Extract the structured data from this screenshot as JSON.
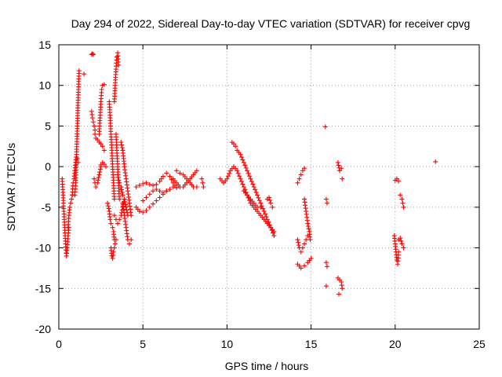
{
  "chart_data": {
    "type": "scatter",
    "title": "Day 294 of 2022, Sidereal Day-to-day VTEC variation (SDTVAR) for receiver cpvg",
    "xlabel": "GPS time / hours",
    "ylabel": "SDTVAR / TECUs",
    "xlim": [
      0,
      25
    ],
    "ylim": [
      -20,
      15
    ],
    "xticks": [
      0,
      5,
      10,
      15,
      20,
      25
    ],
    "yticks": [
      -20,
      -15,
      -10,
      -5,
      0,
      5,
      10,
      15
    ],
    "xtick_labels": [
      "0",
      "5",
      "10",
      "15",
      "20",
      "25"
    ],
    "ytick_labels": [
      "-20",
      "-15",
      "-10",
      "-5",
      "0",
      "5",
      "10",
      "15"
    ],
    "grid": true,
    "marker": "plus",
    "color": "#ff0000",
    "series": [
      {
        "name": "s01",
        "x": [
          0.2,
          0.25,
          0.3,
          0.35,
          0.4,
          0.45,
          0.5,
          0.55,
          0.6
        ],
        "y": [
          -1.5,
          -3.5,
          -5.5,
          -7.5,
          -9.5,
          -11.0,
          -10.0,
          -8.5,
          -7.5
        ]
      },
      {
        "name": "s02",
        "x": [
          0.55,
          0.6,
          0.65,
          0.7,
          0.75,
          0.8
        ],
        "y": [
          -7.5,
          -6.0,
          -5.0,
          -4.5,
          -4.0,
          -3.5
        ]
      },
      {
        "name": "s03",
        "x": [
          0.8,
          0.85,
          0.9,
          0.95,
          1.0,
          1.05,
          1.1,
          1.15
        ],
        "y": [
          -3.5,
          -2.0,
          -1.5,
          -0.5,
          0.5,
          1.5,
          1.0,
          0.5
        ]
      },
      {
        "name": "s04",
        "x": [
          0.95,
          1.0,
          1.05,
          1.1,
          1.15,
          1.2
        ],
        "y": [
          -3.5,
          -2.0,
          1.5,
          5.0,
          8.5,
          11.8
        ]
      },
      {
        "name": "s05",
        "x": [
          1.5
        ],
        "y": [
          11.4
        ]
      },
      {
        "name": "s06",
        "x": [
          1.95,
          2.0,
          2.05
        ],
        "y": [
          13.8,
          13.9,
          13.8
        ]
      },
      {
        "name": "s07",
        "x": [
          1.95,
          2.0,
          2.05,
          2.1,
          2.15
        ],
        "y": [
          6.8,
          6.0,
          5.5,
          5.0,
          4.5
        ]
      },
      {
        "name": "s08",
        "x": [
          2.15,
          2.2,
          2.3,
          2.4,
          2.5,
          2.6,
          2.7
        ],
        "y": [
          4.0,
          3.5,
          3.3,
          3.0,
          2.8,
          2.5,
          2.0
        ]
      },
      {
        "name": "s09",
        "x": [
          2.1,
          2.15,
          2.2,
          2.3,
          2.4,
          2.5
        ],
        "y": [
          -1.5,
          -2.0,
          -2.5,
          -2.0,
          -1.0,
          0.0
        ]
      },
      {
        "name": "s10",
        "x": [
          2.4,
          2.45,
          2.5,
          2.55,
          2.6,
          2.7
        ],
        "y": [
          4.0,
          6.0,
          8.0,
          9.5,
          10.0,
          10.1
        ]
      },
      {
        "name": "s11",
        "x": [
          2.5,
          2.6,
          2.7,
          2.8
        ],
        "y": [
          0.2,
          0.5,
          0.3,
          0.0
        ]
      },
      {
        "name": "s12",
        "x": [
          2.9,
          3.0,
          3.05,
          3.1,
          3.2,
          3.25,
          3.3
        ],
        "y": [
          -4.5,
          -5.5,
          -6.5,
          -7.0,
          -7.5,
          -8.0,
          -9.0
        ]
      },
      {
        "name": "s13",
        "x": [
          3.1,
          3.15,
          3.2,
          3.25,
          3.3,
          3.35,
          3.4
        ],
        "y": [
          -10.0,
          -11.0,
          -11.3,
          -10.5,
          -10.0,
          -9.5,
          -9.0
        ]
      },
      {
        "name": "s14",
        "x": [
          3.0,
          3.05,
          3.1,
          3.15,
          3.2,
          3.25,
          3.3
        ],
        "y": [
          8.0,
          6.0,
          4.0,
          2.0,
          0.0,
          -2.0,
          -4.0
        ]
      },
      {
        "name": "s15",
        "x": [
          3.3,
          3.35,
          3.4,
          3.45,
          3.5,
          3.55
        ],
        "y": [
          8.0,
          10.0,
          12.0,
          13.5,
          14.0,
          12.5
        ]
      },
      {
        "name": "s16",
        "x": [
          3.4,
          3.45,
          3.5,
          3.55,
          3.6
        ],
        "y": [
          4.0,
          2.0,
          0.0,
          -2.0,
          -4.0
        ]
      },
      {
        "name": "s17",
        "x": [
          3.3,
          3.4,
          3.5,
          3.6,
          3.7,
          3.8,
          3.9
        ],
        "y": [
          -6.0,
          -6.5,
          -7.0,
          -6.5,
          -6.0,
          -5.0,
          -4.0
        ]
      },
      {
        "name": "s18",
        "x": [
          3.8,
          3.9,
          4.0,
          4.1,
          4.2,
          4.3
        ],
        "y": [
          -4.5,
          -6.0,
          -7.5,
          -9.0,
          -9.5,
          -9.0
        ]
      },
      {
        "name": "s19",
        "x": [
          3.7,
          3.8,
          3.9,
          4.0,
          4.1,
          4.2,
          4.3
        ],
        "y": [
          3.0,
          2.0,
          0.0,
          -1.5,
          -3.0,
          -4.5,
          -6.0
        ]
      },
      {
        "name": "s20",
        "x": [
          3.5,
          3.6,
          3.7,
          3.8,
          3.9,
          4.0,
          4.1
        ],
        "y": [
          -1.0,
          -2.0,
          -2.5,
          -3.5,
          -4.0,
          -5.0,
          -6.0
        ]
      },
      {
        "name": "s21",
        "x": [
          4.6,
          4.8,
          5.0,
          5.2,
          5.4,
          5.6,
          5.8,
          6.0,
          6.2,
          6.4,
          6.6,
          6.8
        ],
        "y": [
          -5.0,
          -5.5,
          -5.6,
          -5.4,
          -5.0,
          -4.6,
          -4.2,
          -3.8,
          -3.4,
          -3.0,
          -2.8,
          -2.5
        ]
      },
      {
        "name": "s22",
        "x": [
          4.6,
          4.8,
          5.0,
          5.2,
          5.4,
          5.6,
          5.8,
          6.0,
          6.2,
          6.4,
          6.6,
          6.8,
          7.0
        ],
        "y": [
          -2.5,
          -2.3,
          -2.1,
          -2.0,
          -2.2,
          -2.3,
          -2.2,
          -1.8,
          -1.2,
          -0.8,
          -1.2,
          -2.0,
          -2.6
        ]
      },
      {
        "name": "s23",
        "x": [
          5.0,
          5.2,
          5.4,
          5.6,
          5.8,
          6.0,
          6.2,
          6.4
        ],
        "y": [
          -4.2,
          -3.8,
          -3.4,
          -3.0,
          -2.8,
          -3.0,
          -3.2,
          -3.0
        ]
      },
      {
        "name": "s24",
        "x": [
          6.8,
          7.0,
          7.2,
          7.4,
          7.6,
          7.8,
          8.0,
          8.2
        ],
        "y": [
          -1.5,
          -2.0,
          -2.5,
          -2.5,
          -2.0,
          -1.5,
          -1.0,
          -0.5
        ]
      },
      {
        "name": "s25",
        "x": [
          7.0,
          7.2,
          7.4,
          7.6,
          7.8,
          8.0,
          8.2
        ],
        "y": [
          -0.5,
          -0.8,
          -1.0,
          -1.5,
          -2.0,
          -2.5,
          -2.5
        ]
      },
      {
        "name": "s26",
        "x": [
          8.5,
          8.55,
          8.6
        ],
        "y": [
          -1.5,
          -2.0,
          -2.5
        ]
      },
      {
        "name": "s27",
        "x": [
          9.6,
          9.8,
          10.0,
          10.2,
          10.4,
          10.6,
          10.8,
          11.0,
          11.2,
          11.4,
          11.6,
          11.8,
          12.0,
          12.2,
          12.4,
          12.6,
          12.8
        ],
        "y": [
          -1.5,
          -2.0,
          -1.5,
          -0.5,
          0.0,
          -0.5,
          -1.5,
          -2.5,
          -3.5,
          -4.5,
          -5.0,
          -5.5,
          -6.0,
          -6.5,
          -7.0,
          -7.5,
          -8.5
        ]
      },
      {
        "name": "s28",
        "x": [
          10.3,
          10.4,
          10.5,
          10.6,
          10.8,
          11.0,
          11.2,
          11.4,
          11.6,
          11.8,
          12.0,
          12.2,
          12.4,
          12.6,
          12.8
        ],
        "y": [
          3.0,
          2.8,
          2.5,
          2.0,
          1.5,
          0.5,
          -0.5,
          -1.5,
          -2.5,
          -3.5,
          -4.5,
          -5.5,
          -6.5,
          -7.5,
          -8.0
        ]
      },
      {
        "name": "s29",
        "x": [
          11.0,
          11.2,
          11.4,
          11.6,
          11.8,
          12.0
        ],
        "y": [
          -3.0,
          -3.5,
          -4.0,
          -4.5,
          -5.0,
          -5.0
        ]
      },
      {
        "name": "s30",
        "x": [
          12.4,
          12.5,
          12.6,
          12.7
        ],
        "y": [
          -4.0,
          -3.8,
          -4.5,
          -5.0
        ]
      },
      {
        "name": "s31",
        "x": [
          14.2,
          14.4,
          14.6,
          14.8,
          15.0
        ],
        "y": [
          -12.0,
          -12.5,
          -12.2,
          -11.8,
          -11.3
        ]
      },
      {
        "name": "s32",
        "x": [
          14.2,
          14.3,
          14.4,
          14.5,
          14.6,
          14.7,
          14.8,
          14.9
        ],
        "y": [
          -9.0,
          -10.0,
          -10.5,
          -10.0,
          -9.5,
          -9.0,
          -8.5,
          -8.0
        ]
      },
      {
        "name": "s33",
        "x": [
          14.2,
          14.3,
          14.4,
          14.5,
          14.6
        ],
        "y": [
          -2.0,
          -1.5,
          -1.0,
          -0.5,
          -0.2
        ]
      },
      {
        "name": "s34",
        "x": [
          14.6,
          14.7,
          14.8,
          14.9,
          14.95
        ],
        "y": [
          -4.0,
          -5.5,
          -7.0,
          -8.0,
          -9.0
        ]
      },
      {
        "name": "s35",
        "x": [
          15.85
        ],
        "y": [
          4.9
        ]
      },
      {
        "name": "s36",
        "x": [
          15.9,
          15.95
        ],
        "y": [
          -4.0,
          -4.5
        ]
      },
      {
        "name": "s37",
        "x": [
          15.9,
          15.95
        ],
        "y": [
          -11.8,
          -12.3
        ]
      },
      {
        "name": "s38",
        "x": [
          15.9
        ],
        "y": [
          -14.7
        ]
      },
      {
        "name": "s39",
        "x": [
          16.6,
          16.7,
          16.8
        ],
        "y": [
          0.5,
          -0.5,
          -0.2
        ]
      },
      {
        "name": "s40",
        "x": [
          16.85
        ],
        "y": [
          -1.5
        ]
      },
      {
        "name": "s41",
        "x": [
          16.6,
          16.8,
          16.85
        ],
        "y": [
          -13.7,
          -14.2,
          -15.0
        ]
      },
      {
        "name": "s42",
        "x": [
          16.65
        ],
        "y": [
          -15.7
        ]
      },
      {
        "name": "s43",
        "x": [
          20.0,
          20.1,
          20.2
        ],
        "y": [
          -1.7,
          -1.5,
          -1.8
        ]
      },
      {
        "name": "s44",
        "x": [
          19.95,
          20.0,
          20.05,
          20.1,
          20.15,
          20.2
        ],
        "y": [
          -8.5,
          -9.5,
          -10.5,
          -11.5,
          -12.0,
          -10.5
        ]
      },
      {
        "name": "s45",
        "x": [
          20.2,
          20.3,
          20.4,
          20.5
        ],
        "y": [
          -9.0,
          -8.8,
          -9.5,
          -10.0
        ]
      },
      {
        "name": "s46",
        "x": [
          20.3,
          20.4,
          20.45,
          20.5
        ],
        "y": [
          -3.5,
          -4.0,
          -4.5,
          -5.0
        ]
      },
      {
        "name": "s47",
        "x": [
          22.4
        ],
        "y": [
          0.6
        ]
      }
    ]
  }
}
